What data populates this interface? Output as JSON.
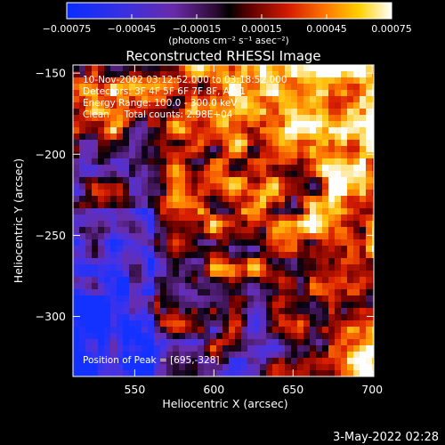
{
  "colorbar": {
    "tick_labels": [
      "-0.00075",
      "-0.00045",
      "-0.00015",
      "0.00015",
      "0.00045",
      "0.00075"
    ],
    "tick_values": [
      -0.00075,
      -0.00045,
      -0.00015,
      0.00015,
      0.00045,
      0.00075
    ],
    "range": [
      -0.00075,
      0.00075
    ],
    "units_label": "(photons cm⁻² s⁻¹ asec⁻²)",
    "colormap": "blue-purple-red-orange-yellow-white"
  },
  "footer_timestamp": "3-May-2022 02:28",
  "chart_data": {
    "type": "heatmap",
    "title": "Reconstructed RHESSI Image",
    "xlabel": "Heliocentric X (arcsec)",
    "ylabel": "Heliocentric Y (arcsec)",
    "xlim": [
      511,
      701
    ],
    "ylim": [
      -337,
      -145
    ],
    "x_ticks": [
      550,
      600,
      650,
      700
    ],
    "y_ticks": [
      -150,
      -200,
      -250,
      -300
    ],
    "x_tick_labels": [
      "550",
      "600",
      "650",
      "700"
    ],
    "y_tick_labels": [
      "−150",
      "−200",
      "−250",
      "−300"
    ],
    "annotations": [
      "10-Nov-2002 03:12:52.000 to 03:18:52.000",
      "Detectors: 3F 4F 5F 6F 7F 8F, Att 1",
      "Energy Range: 100.0 - 300.0 keV",
      "Clean     Total counts: 2.98E+04"
    ],
    "peak_label": "Position of Peak = [695,-328]",
    "peak_position": [
      695,
      -328
    ],
    "colors": {
      "low": "#1a3cff",
      "mid_low": "#5a1fb0",
      "mid": "#000000",
      "mid_high": "#cc1a00",
      "high": "#ffb000",
      "max": "#ffffff"
    }
  }
}
